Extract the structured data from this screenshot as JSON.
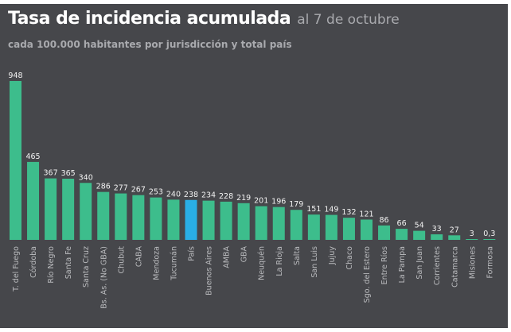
{
  "chart_data": {
    "type": "bar",
    "title": "Tasa de incidencia acumulada",
    "title_suffix": "al 7 de octubre",
    "subtitle": "cada 100.000 habitantes por jurisdicción y total país",
    "categories": [
      "T. del Fuego",
      "Córdoba",
      "Río Negro",
      "Santa Fe",
      "Santa Cruz",
      "Bs. As. (No GBA)",
      "Chubut",
      "CABA",
      "Mendoza",
      "Tucumán",
      "País",
      "Buenos Aires",
      "AMBA",
      "GBA",
      "Neuquén",
      "La Rioja",
      "Salta",
      "San Luis",
      "Jujuy",
      "Chaco",
      "Sgo. del Estero",
      "Entre Ríos",
      "La Pampa",
      "San Juan",
      "Corrientes",
      "Catamarca",
      "Misiones",
      "Formosa"
    ],
    "values": [
      948,
      465,
      367,
      365,
      340,
      286,
      277,
      267,
      253,
      240,
      238,
      234,
      228,
      219,
      201,
      196,
      179,
      151,
      149,
      132,
      121,
      86,
      66,
      54,
      33,
      27,
      3,
      0.3
    ],
    "data_labels": [
      "948",
      "465",
      "367",
      "365",
      "340",
      "286",
      "277",
      "267",
      "253",
      "240",
      "238",
      "234",
      "228",
      "219",
      "201",
      "196",
      "179",
      "151",
      "149",
      "132",
      "121",
      "86",
      "66",
      "54",
      "33",
      "27",
      "3",
      "0,3"
    ],
    "highlight_category": "País",
    "colors": {
      "bar": "#3dbd8c",
      "highlight": "#29aee6",
      "background": "#46474b"
    },
    "xlabel": "",
    "ylabel": "",
    "ylim": [
      0,
      948
    ],
    "grid": false,
    "legend": "none"
  }
}
